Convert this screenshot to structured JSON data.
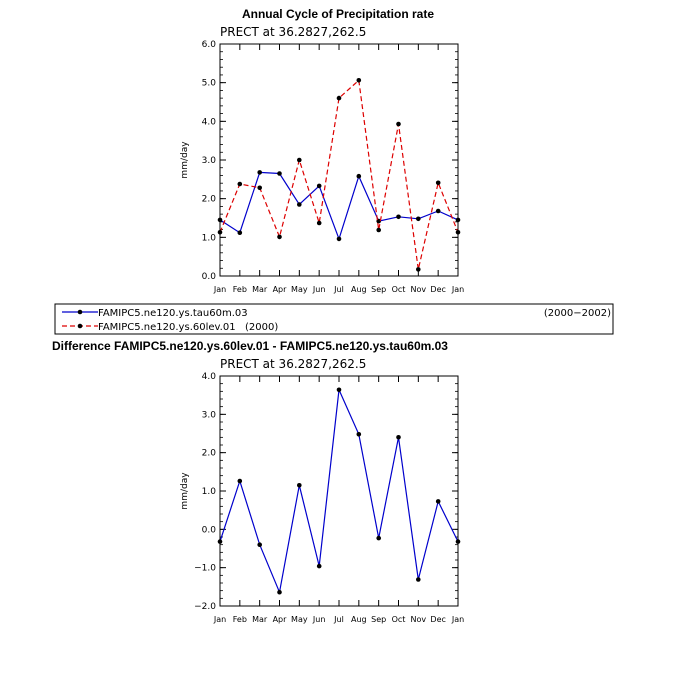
{
  "chart_data": [
    {
      "type": "line",
      "title": "Annual Cycle of Precipitation rate",
      "subtitle": "PRECT at 36.2827,262.5",
      "ylabel": "mm/day",
      "xlabel": "",
      "ylim": [
        0,
        6
      ],
      "yticks": [
        "0.0",
        "1.0",
        "2.0",
        "3.0",
        "4.0",
        "5.0",
        "6.0"
      ],
      "ytick_values": [
        0,
        1,
        2,
        3,
        4,
        5,
        6
      ],
      "categories": [
        "Jan",
        "Feb",
        "Mar",
        "Apr",
        "May",
        "Jun",
        "Jul",
        "Aug",
        "Sep",
        "Oct",
        "Nov",
        "Dec",
        "Jan"
      ],
      "series": [
        {
          "name": "FAMIPC5.ne120.ys.tau60m.03",
          "period": "(2000−2002)",
          "color": "#0000cc",
          "dash": "solid",
          "values": [
            1.45,
            1.12,
            2.68,
            2.65,
            1.85,
            2.33,
            0.96,
            2.58,
            1.42,
            1.53,
            1.48,
            1.68,
            1.45
          ]
        },
        {
          "name": "FAMIPC5.ne120.ys.60lev.01",
          "period": "(2000)",
          "color": "#dd0000",
          "dash": "dashed",
          "values": [
            1.13,
            2.38,
            2.28,
            1.01,
            3.0,
            1.37,
            4.6,
            5.06,
            1.19,
            3.93,
            0.17,
            2.41,
            1.13
          ]
        }
      ]
    },
    {
      "type": "line",
      "title": "Difference FAMIPC5.ne120.ys.60lev.01 - FAMIPC5.ne120.ys.tau60m.03",
      "subtitle": "PRECT at 36.2827,262.5",
      "ylabel": "mm/day",
      "xlabel": "",
      "ylim": [
        -2,
        4
      ],
      "yticks": [
        "−2.0",
        "−1.0",
        "0.0",
        "1.0",
        "2.0",
        "3.0",
        "4.0"
      ],
      "ytick_values": [
        -2,
        -1,
        0,
        1,
        2,
        3,
        4
      ],
      "categories": [
        "Jan",
        "Feb",
        "Mar",
        "Apr",
        "May",
        "Jun",
        "Jul",
        "Aug",
        "Sep",
        "Oct",
        "Nov",
        "Dec",
        "Jan"
      ],
      "series": [
        {
          "name": "Difference",
          "color": "#0000cc",
          "dash": "solid",
          "values": [
            -0.32,
            1.26,
            -0.4,
            -1.64,
            1.15,
            -0.96,
            3.64,
            2.48,
            -0.23,
            2.4,
            -1.31,
            0.73,
            -0.32
          ]
        }
      ]
    }
  ]
}
